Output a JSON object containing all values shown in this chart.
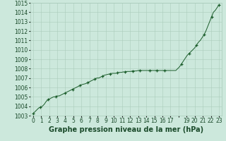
{
  "title": "Graphe pression niveau de la mer (hPa)",
  "y_values": [
    1003.2,
    1003.4,
    1003.6,
    1003.8,
    1003.9,
    1004.0,
    1004.2,
    1004.5,
    1004.7,
    1004.8,
    1004.9,
    1005.0,
    1005.0,
    1005.1,
    1005.1,
    1005.2,
    1005.3,
    1005.4,
    1005.5,
    1005.6,
    1005.7,
    1005.8,
    1005.9,
    1006.0,
    1006.1,
    1006.2,
    1006.3,
    1006.35,
    1006.4,
    1006.5,
    1006.6,
    1006.7,
    1006.8,
    1006.9,
    1007.0,
    1007.0,
    1007.1,
    1007.2,
    1007.3,
    1007.35,
    1007.4,
    1007.45,
    1007.5,
    1007.5,
    1007.5,
    1007.55,
    1007.6,
    1007.6,
    1007.65,
    1007.65,
    1007.7,
    1007.7,
    1007.7,
    1007.75,
    1007.75,
    1007.75,
    1007.8,
    1007.8,
    1007.8,
    1007.8,
    1007.8,
    1007.8,
    1007.8,
    1007.8,
    1007.8,
    1007.8,
    1007.8,
    1007.8,
    1007.8,
    1007.8,
    1007.8,
    1007.8,
    1007.8,
    1007.8,
    1007.8,
    1007.8,
    1007.8,
    1008.0,
    1008.2,
    1008.5,
    1008.8,
    1009.1,
    1009.4,
    1009.6,
    1009.8,
    1010.0,
    1010.2,
    1010.5,
    1010.8,
    1011.0,
    1011.3,
    1011.6,
    1012.0,
    1012.5,
    1013.0,
    1013.5,
    1014.0,
    1014.2,
    1014.5,
    1014.8
  ],
  "marker_indices": [
    0,
    4,
    8,
    12,
    17,
    21,
    25,
    29,
    33,
    37,
    41,
    45,
    49,
    53,
    57,
    62,
    66,
    70,
    79,
    83,
    87,
    91,
    95,
    99
  ],
  "y_min": 1003,
  "y_max": 1015,
  "x_min": 0,
  "x_max": 23,
  "bg_color": "#cce8dc",
  "grid_color": "#aaccbb",
  "line_color": "#1a5c2a",
  "marker_color": "#1a5c2a",
  "tick_label_color": "#1a4a2a",
  "title_color": "#1a4a2a",
  "title_fontsize": 7.0,
  "tick_fontsize": 5.5,
  "y_ticks": [
    1003,
    1004,
    1005,
    1006,
    1007,
    1008,
    1009,
    1010,
    1011,
    1012,
    1013,
    1014,
    1015
  ],
  "x_tick_labels": [
    "0",
    "1",
    "2",
    "3",
    "4",
    "5",
    "6",
    "7",
    "8",
    "9",
    "10",
    "11",
    "12",
    "13",
    "14",
    "15",
    "16",
    "17",
    "",
    "19",
    "20",
    "21",
    "22",
    "23"
  ]
}
